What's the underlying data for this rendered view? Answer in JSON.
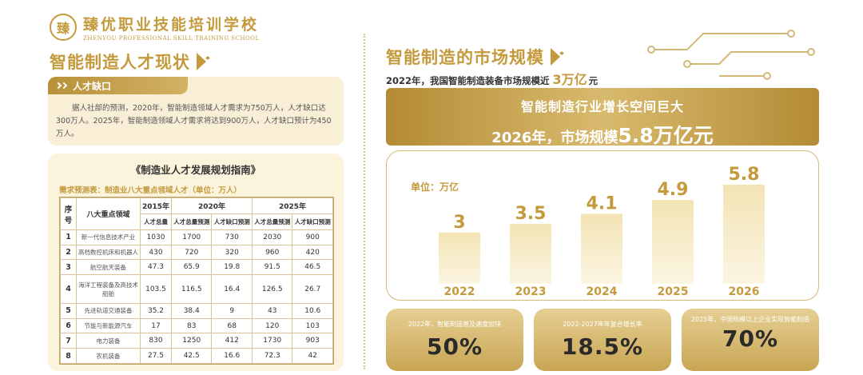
{
  "logo": {
    "mark": "臻",
    "name_cn": "臻优职业技能培训学校",
    "name_en": "ZHENYOU PROFESSIONAL SKILL TRAINING SCHOOL"
  },
  "left": {
    "title": "智能制造人才现状",
    "gap": {
      "label": "人才缺口",
      "body": "据人社部的预测，2020年，智能制造领域人才需求为750万人，人才缺口达300万人。2025年，智能制造领域人才需求将达到900万人，人才缺口预计为450万人。"
    },
    "table_box": {
      "title": "《制造业人才发展规划指南》",
      "subtitle": "需求预测表：制造业八大重点领域人才（单位：万人）",
      "headers": {
        "seq": "序号",
        "field": "八大重点领域",
        "y2015": "2015年",
        "y2020": "2020年",
        "y2025": "2025年",
        "total": "人才总量",
        "total_pred": "人才总量预测",
        "gap_pred": "人才缺口预测"
      },
      "rows": [
        {
          "seq": "1",
          "field": "新一代信息技术产业",
          "v2015": "1030",
          "v2020t": "1700",
          "v2020g": "730",
          "v2025t": "2030",
          "v2025g": "900"
        },
        {
          "seq": "2",
          "field": "高档数控机床和机器人",
          "v2015": "430",
          "v2020t": "720",
          "v2020g": "320",
          "v2025t": "960",
          "v2025g": "420"
        },
        {
          "seq": "3",
          "field": "航空航天装备",
          "v2015": "47.3",
          "v2020t": "65.9",
          "v2020g": "19.8",
          "v2025t": "91.5",
          "v2025g": "46.5"
        },
        {
          "seq": "4",
          "field": "海洋工程装备及高技术船舶",
          "v2015": "103.5",
          "v2020t": "116.5",
          "v2020g": "16.4",
          "v2025t": "126.5",
          "v2025g": "26.7"
        },
        {
          "seq": "5",
          "field": "先进轨道交通装备",
          "v2015": "35.2",
          "v2020t": "38.4",
          "v2020g": "9",
          "v2025t": "43",
          "v2025g": "10.6"
        },
        {
          "seq": "6",
          "field": "节能与新能源汽车",
          "v2015": "17",
          "v2020t": "83",
          "v2020g": "68",
          "v2025t": "120",
          "v2025g": "103"
        },
        {
          "seq": "7",
          "field": "电力装备",
          "v2015": "830",
          "v2020t": "1250",
          "v2020g": "412",
          "v2025t": "1730",
          "v2025g": "903"
        },
        {
          "seq": "8",
          "field": "农机装备",
          "v2015": "27.5",
          "v2020t": "42.5",
          "v2020g": "16.6",
          "v2025t": "72.3",
          "v2025g": "42"
        }
      ]
    }
  },
  "right": {
    "title": "智能制造的市场规模",
    "sub_prefix": "2022年，我国智能制造装备市场规模近",
    "sub_value": "3万亿",
    "sub_unit": "元",
    "banner_line1": "智能制造行业增长空间巨大",
    "banner_line2_prefix": "2026年，市场规模",
    "banner_line2_value": "5.8万亿元",
    "chart_unit": "单位：万亿",
    "stats": [
      {
        "label": "2022年，智能制造普及速度加快",
        "value": "50%"
      },
      {
        "label": "2022-2027年年复合增长率",
        "value": "18.5%"
      },
      {
        "label": "2025年，中国规模以上企业实现智能制造",
        "value": "70%"
      }
    ]
  },
  "chart_data": {
    "type": "bar",
    "categories": [
      "2022",
      "2023",
      "2024",
      "2025",
      "2026"
    ],
    "values": [
      3,
      3.5,
      4.1,
      4.9,
      5.8
    ],
    "ylabel": "单位：万亿",
    "colors": {
      "bar_top": "#f3e4b4",
      "bar_bottom": "#fbf5e2",
      "value": "#c49a3c",
      "category": "#c49a3c"
    }
  }
}
